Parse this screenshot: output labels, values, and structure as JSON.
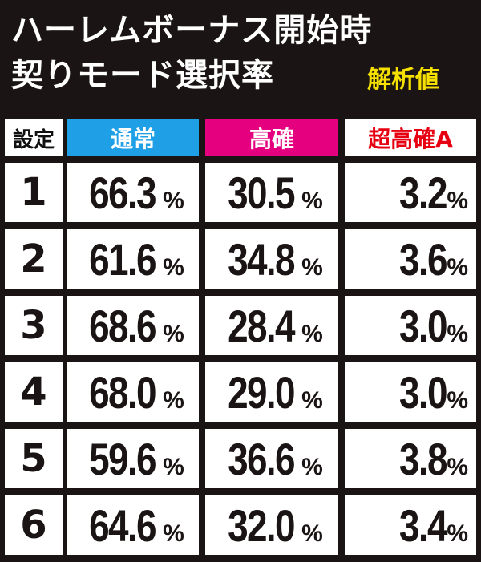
{
  "title": {
    "line1": "ハーレムボーナス開始時",
    "line2": "契りモード選択率",
    "subtitle": "解析値"
  },
  "table": {
    "header": {
      "setting": "設定",
      "col1": "通常",
      "col2": "高確",
      "col3": "超高確A"
    },
    "header_colors": {
      "col1": "#1e9fe6",
      "col2": "#e4007f",
      "col3_text": "#e60012"
    },
    "rows": [
      {
        "setting": "1",
        "normal": "66.3",
        "high": "30.5",
        "super_high_a": "3.2"
      },
      {
        "setting": "2",
        "normal": "61.6",
        "high": "34.8",
        "super_high_a": "3.6"
      },
      {
        "setting": "3",
        "normal": "68.6",
        "high": "28.4",
        "super_high_a": "3.0"
      },
      {
        "setting": "4",
        "normal": "68.0",
        "high": "29.0",
        "super_high_a": "3.0"
      },
      {
        "setting": "5",
        "normal": "59.6",
        "high": "36.6",
        "super_high_a": "3.8"
      },
      {
        "setting": "6",
        "normal": "64.6",
        "high": "32.0",
        "super_high_a": "3.4"
      }
    ],
    "unit": "%"
  }
}
